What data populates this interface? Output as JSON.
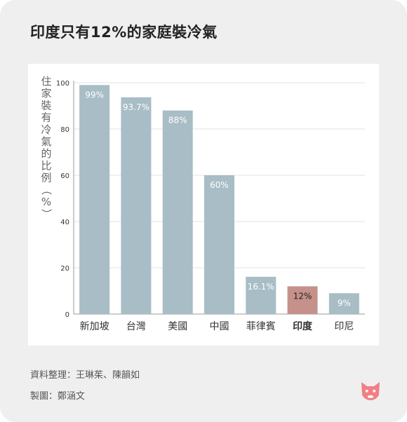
{
  "title": "印度只有12%的家庭裝冷氣",
  "chart_data": {
    "type": "bar",
    "ylabel": "住家裝有冷氣的比例（%）",
    "ylim": [
      0,
      100
    ],
    "yticks": [
      0,
      20,
      40,
      60,
      80,
      100
    ],
    "grid": true,
    "categories": [
      "新加坡",
      "台灣",
      "美國",
      "中國",
      "菲律賓",
      "印度",
      "印尼"
    ],
    "values": [
      99,
      93.7,
      88,
      60,
      16.1,
      12,
      9
    ],
    "data_labels": [
      "99%",
      "93.7%",
      "88%",
      "60%",
      "16.1%",
      "12%",
      "9%"
    ],
    "highlight_category": "印度",
    "colors": {
      "bar": "#a8bdc6",
      "highlight": "#c6918a"
    }
  },
  "footer": {
    "source": "資料整理：王琳茱、陳韻如",
    "credit": "製圖：鄭涵文"
  },
  "logo_icon": "cat-face-logo"
}
